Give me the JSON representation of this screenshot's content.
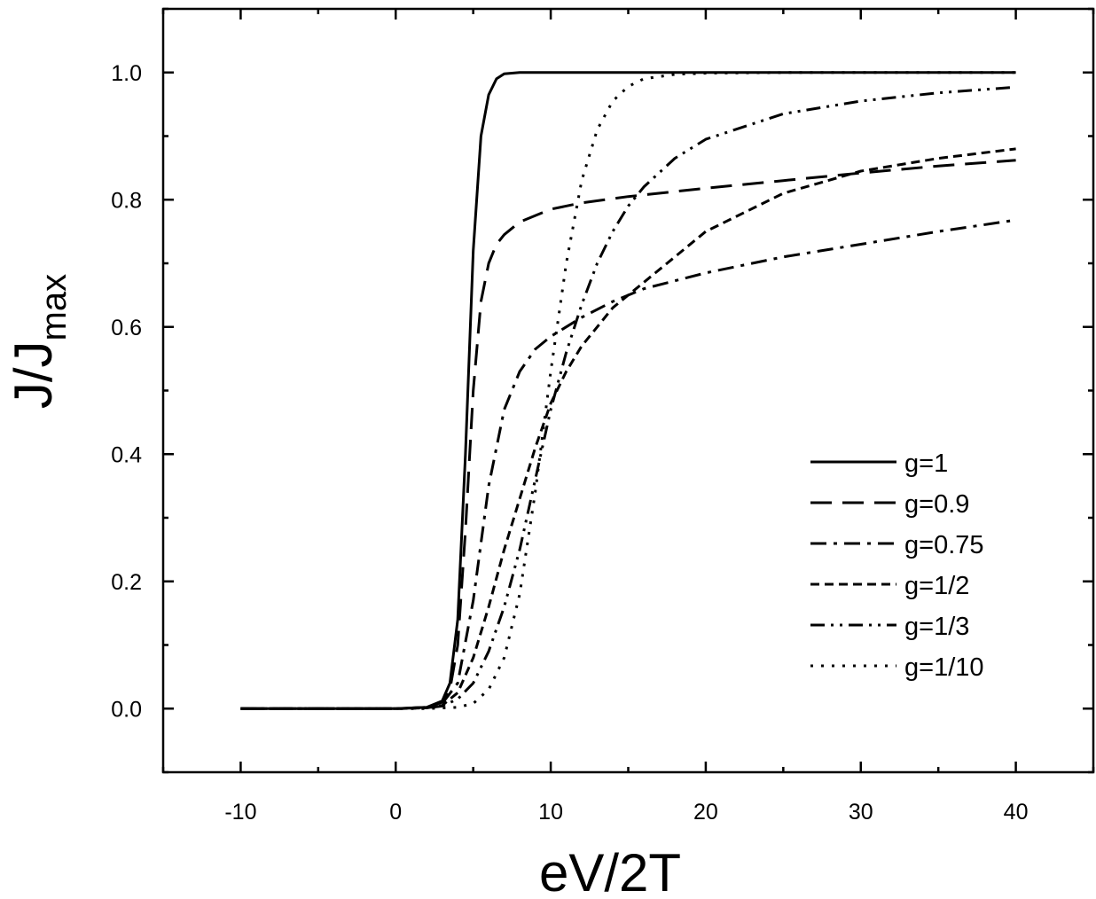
{
  "chart_data": {
    "type": "line",
    "title": "",
    "xlabel": "eV/2T",
    "ylabel": "J/J",
    "ylabel_subscript": "max",
    "xlim": [
      -15,
      45
    ],
    "ylim": [
      -0.1,
      1.1
    ],
    "xticks": [
      -10,
      0,
      10,
      20,
      30,
      40
    ],
    "xtick_labels": [
      "-10",
      "0",
      "10",
      "20",
      "30",
      "40"
    ],
    "yticks": [
      0.0,
      0.2,
      0.4,
      0.6,
      0.8,
      1.0
    ],
    "ytick_labels": [
      "0.0",
      "0.2",
      "0.4",
      "0.6",
      "0.8",
      "1.0"
    ],
    "grid": false,
    "legend_position": "right",
    "series": [
      {
        "name": "g=1",
        "style": "solid",
        "x": [
          -10,
          0,
          2,
          3,
          3.5,
          4,
          4.5,
          5,
          5.5,
          6,
          6.5,
          7,
          8,
          10,
          20,
          30,
          40
        ],
        "y": [
          0,
          0,
          0.002,
          0.012,
          0.04,
          0.14,
          0.4,
          0.72,
          0.9,
          0.965,
          0.99,
          0.998,
          1.0,
          1.0,
          1.0,
          1.0,
          1.0
        ]
      },
      {
        "name": "g=0.9",
        "style": "dash",
        "x": [
          -10,
          0,
          2,
          3,
          3.5,
          4,
          4.5,
          5,
          5.5,
          6,
          6.5,
          7,
          8,
          10,
          12,
          15,
          20,
          25,
          30,
          35,
          40
        ],
        "y": [
          0,
          0,
          0.002,
          0.01,
          0.03,
          0.1,
          0.28,
          0.5,
          0.64,
          0.7,
          0.73,
          0.745,
          0.765,
          0.785,
          0.795,
          0.805,
          0.818,
          0.83,
          0.842,
          0.853,
          0.862
        ]
      },
      {
        "name": "g=0.75",
        "style": "dash-dot",
        "x": [
          -10,
          0,
          2,
          3,
          4,
          5,
          6,
          7,
          8,
          9,
          10,
          12,
          14,
          16,
          20,
          25,
          30,
          35,
          40
        ],
        "y": [
          0,
          0,
          0.002,
          0.008,
          0.04,
          0.17,
          0.35,
          0.47,
          0.53,
          0.565,
          0.585,
          0.615,
          0.64,
          0.66,
          0.685,
          0.71,
          0.73,
          0.75,
          0.768
        ]
      },
      {
        "name": "g=1/2",
        "style": "short-dash",
        "x": [
          -10,
          0,
          2,
          3,
          4,
          5,
          6,
          7,
          8,
          9,
          10,
          11,
          12,
          14,
          16,
          18,
          20,
          25,
          30,
          35,
          40
        ],
        "y": [
          0,
          0,
          0.001,
          0.005,
          0.025,
          0.08,
          0.16,
          0.25,
          0.33,
          0.41,
          0.48,
          0.53,
          0.57,
          0.63,
          0.67,
          0.71,
          0.75,
          0.81,
          0.845,
          0.865,
          0.88
        ]
      },
      {
        "name": "g=1/3",
        "style": "dash-dot-dot",
        "x": [
          -10,
          0,
          2,
          3,
          4,
          5,
          6,
          7,
          8,
          9,
          10,
          11,
          12,
          13,
          14,
          15,
          16,
          18,
          20,
          25,
          30,
          35,
          40
        ],
        "y": [
          0,
          0,
          0.001,
          0.004,
          0.015,
          0.04,
          0.09,
          0.16,
          0.25,
          0.36,
          0.47,
          0.56,
          0.635,
          0.7,
          0.75,
          0.79,
          0.82,
          0.865,
          0.895,
          0.935,
          0.955,
          0.968,
          0.977
        ]
      },
      {
        "name": "g=1/10",
        "style": "dot",
        "x": [
          -10,
          0,
          2,
          4,
          5,
          6,
          7,
          8,
          9,
          10,
          11,
          12,
          13,
          14,
          15,
          16,
          18,
          20,
          25,
          30,
          40
        ],
        "y": [
          0,
          0,
          0,
          0.002,
          0.008,
          0.03,
          0.08,
          0.18,
          0.34,
          0.53,
          0.7,
          0.83,
          0.91,
          0.955,
          0.978,
          0.99,
          0.997,
          0.999,
          1.0,
          1.0,
          1.0
        ]
      }
    ]
  }
}
